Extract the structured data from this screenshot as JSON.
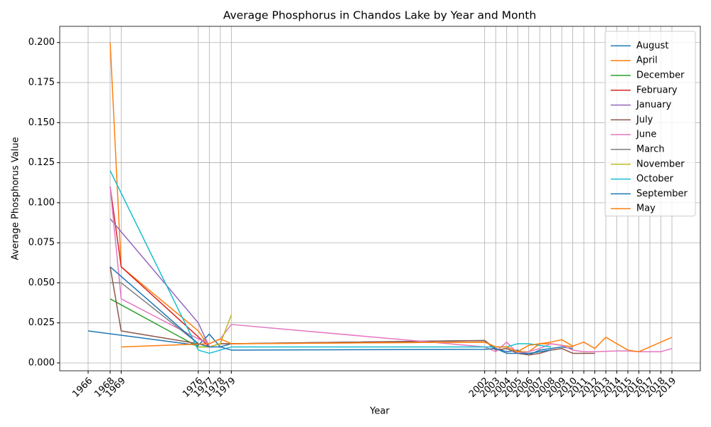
{
  "chart_data": {
    "type": "line",
    "title": "Average Phosphorus in Chandos Lake by Year and Month",
    "x_label": "Year",
    "y_label": "Average Phosphorus Value",
    "xlim": [
      1963.42,
      2021.58
    ],
    "ylim": [
      -0.0049,
      0.2101
    ],
    "xticks": [
      1966,
      1968,
      1969,
      1976,
      1977,
      1978,
      1979,
      2002,
      2003,
      2004,
      2005,
      2006,
      2007,
      2008,
      2009,
      2010,
      2011,
      2012,
      2013,
      2014,
      2015,
      2016,
      2017,
      2018,
      2019
    ],
    "yticks": [
      {
        "value": 0,
        "label": "0.000"
      },
      {
        "value": 0.025,
        "label": "0.025"
      },
      {
        "value": 0.05,
        "label": "0.050"
      },
      {
        "value": 0.075,
        "label": "0.075"
      },
      {
        "value": 0.1,
        "label": "0.100"
      },
      {
        "value": 0.125,
        "label": "0.125"
      },
      {
        "value": 0.15,
        "label": "0.150"
      },
      {
        "value": 0.175,
        "label": "0.175"
      },
      {
        "value": 0.2,
        "label": "0.200"
      }
    ],
    "grid": true,
    "legend": "upper right",
    "series": [
      {
        "name": "August",
        "color": "#1f77b4",
        "x": [
          1966,
          1976,
          1977,
          1978,
          1979,
          2002,
          2003,
          2004,
          2005,
          2006,
          2007,
          2008,
          2009,
          2010
        ],
        "values": [
          0.02,
          0.011,
          0.018,
          0.01,
          0.012,
          0.014,
          0.009,
          0.007,
          0.008,
          0.005,
          0.008,
          0.009,
          0.01,
          0.009
        ]
      },
      {
        "name": "April",
        "color": "#ff7f0e",
        "x": [
          1968,
          1969,
          1976,
          1977,
          1978,
          1979,
          2002,
          2003,
          2004,
          2005,
          2006,
          2007,
          2008,
          2009,
          2010
        ],
        "values": [
          0.2,
          0.06,
          0.02,
          0.01,
          0.012,
          0.012,
          0.013,
          0.01,
          0.01,
          0.007,
          0.007,
          0.012,
          0.012,
          0.011,
          0.01
        ]
      },
      {
        "name": "December",
        "color": "#2ca02c",
        "x": [
          1968,
          1976,
          1977
        ],
        "values": [
          0.04,
          0.01,
          0.01
        ]
      },
      {
        "name": "February",
        "color": "#d62728",
        "x": [
          1968,
          1969,
          1977
        ],
        "values": [
          0.11,
          0.06,
          0.01
        ]
      },
      {
        "name": "January",
        "color": "#9467bd",
        "x": [
          1968,
          1976,
          1977
        ],
        "values": [
          0.09,
          0.025,
          0.01
        ]
      },
      {
        "name": "July",
        "color": "#8c564b",
        "x": [
          1968,
          1969,
          1976,
          1977,
          1978,
          1979,
          2002,
          2003,
          2004,
          2005,
          2006,
          2007,
          2008,
          2009,
          2010,
          2012
        ],
        "values": [
          0.06,
          0.02,
          0.012,
          0.01,
          0.012,
          0.012,
          0.014,
          0.008,
          0.009,
          0.006,
          0.005,
          0.006,
          0.008,
          0.009,
          0.006,
          0.006
        ]
      },
      {
        "name": "June",
        "color": "#e377c2",
        "x": [
          1968,
          1969,
          1976,
          1977,
          1978,
          1979,
          2002,
          2003,
          2004,
          2005,
          2006,
          2007,
          2008,
          2009,
          2010,
          2011,
          2012,
          2014,
          2015,
          2016,
          2018,
          2019
        ],
        "values": [
          0.11,
          0.04,
          0.015,
          0.012,
          0.015,
          0.024,
          0.01,
          0.007,
          0.013,
          0.006,
          0.007,
          0.009,
          0.012,
          0.011,
          0.008,
          0.007,
          0.007,
          0.0075,
          0.0075,
          0.007,
          0.007,
          0.009
        ]
      },
      {
        "name": "March",
        "color": "#7f7f7f",
        "x": [
          1968,
          1969,
          1976,
          1977
        ],
        "values": [
          0.05,
          0.05,
          0.012,
          0.01
        ]
      },
      {
        "name": "November",
        "color": "#bcbd22",
        "x": [
          1976,
          1977,
          1978,
          1979
        ],
        "values": [
          0.01,
          0.01,
          0.012,
          0.03
        ]
      },
      {
        "name": "October",
        "color": "#17becf",
        "x": [
          1968,
          1976,
          1977,
          1978,
          1979,
          2002,
          2003,
          2004,
          2005,
          2006,
          2007,
          2008
        ],
        "values": [
          0.12,
          0.008,
          0.006,
          0.008,
          0.01,
          0.01,
          0.01,
          0.01,
          0.012,
          0.012,
          0.011,
          0.01
        ]
      },
      {
        "name": "September",
        "color": "#1f77b4",
        "x": [
          1968,
          1976,
          1977,
          1978,
          1979,
          2002,
          2003,
          2004,
          2005,
          2006,
          2007,
          2008
        ],
        "values": [
          0.06,
          0.012,
          0.01,
          0.01,
          0.008,
          0.0085,
          0.009,
          0.006,
          0.006,
          0.006,
          0.007,
          0.008
        ]
      },
      {
        "name": "May",
        "color": "#ff7f0e",
        "x": [
          1969,
          1977,
          1978,
          1979,
          2002,
          2003,
          2004,
          2005,
          2006,
          2007,
          2008,
          2009,
          2010,
          2011,
          2012,
          2013,
          2015,
          2016,
          2019
        ],
        "values": [
          0.01,
          0.012,
          0.015,
          0.012,
          0.013,
          0.01,
          0.01,
          0.007,
          0.011,
          0.012,
          0.013,
          0.0145,
          0.0105,
          0.013,
          0.009,
          0.016,
          0.008,
          0.007,
          0.016
        ]
      }
    ]
  }
}
